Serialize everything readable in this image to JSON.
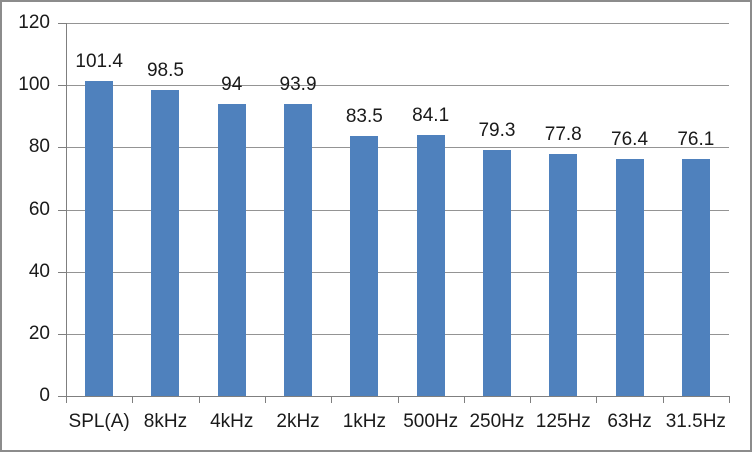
{
  "chart_data": {
    "type": "bar",
    "title": "",
    "xlabel": "",
    "ylabel": "",
    "categories": [
      "SPL(A)",
      "8kHz",
      "4kHz",
      "2kHz",
      "1kHz",
      "500Hz",
      "250Hz",
      "125Hz",
      "63Hz",
      "31.5Hz"
    ],
    "values": [
      101.4,
      98.5,
      94,
      93.9,
      83.5,
      84.1,
      79.3,
      77.8,
      76.4,
      76.1
    ],
    "value_labels": [
      "101.4",
      "98.5",
      "94",
      "93.9",
      "83.5",
      "84.1",
      "79.3",
      "77.8",
      "76.4",
      "76.1"
    ],
    "ylim": [
      0,
      120
    ],
    "ytick_interval": 20,
    "ytick_labels": [
      "0",
      "20",
      "40",
      "60",
      "80",
      "100",
      "120"
    ],
    "grid": true,
    "legend": "none",
    "colors": {
      "bar_fill": "#4F81BD",
      "gridline": "#949494",
      "axis_line": "#7F7F7F",
      "text": "#1a1a1a",
      "frame_border": "#8C8C8C",
      "background": "#FFFFFF"
    }
  }
}
